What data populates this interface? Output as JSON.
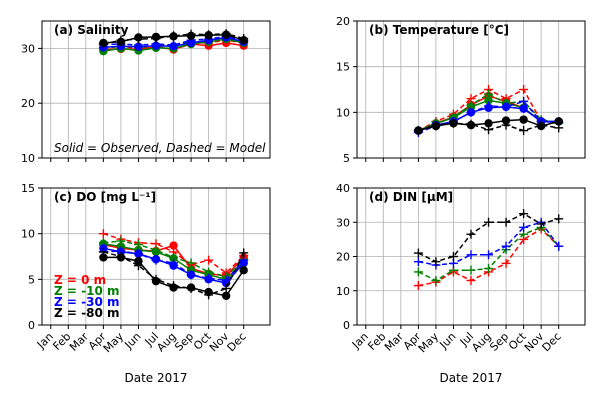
{
  "chart_data": [
    {
      "type": "line",
      "title": "(a) Salinity",
      "annotation": "Solid = Observed, Dashed = Model",
      "xlabel": "",
      "ylabel": "",
      "ylim": [
        10,
        35
      ],
      "yticks": [
        10,
        20,
        30
      ],
      "x_tick_labels": [],
      "grid": true,
      "series": [
        {
          "color": "#ff0000",
          "style": "solid",
          "marker": "circle",
          "x": [
            4,
            5,
            6,
            7,
            8,
            9,
            10,
            11,
            12
          ],
          "values": [
            29.8,
            29.9,
            29.8,
            30.3,
            29.8,
            30.8,
            30.5,
            31.0,
            30.5
          ]
        },
        {
          "color": "#ff0000",
          "style": "dashed",
          "marker": "plus",
          "x": [
            4,
            5,
            6,
            7,
            8,
            9,
            10,
            11,
            12
          ],
          "values": [
            30.2,
            30.3,
            30.0,
            30.5,
            30.5,
            31.0,
            31.0,
            31.5,
            31.0
          ]
        },
        {
          "color": "#008000",
          "style": "solid",
          "marker": "circle",
          "x": [
            4,
            5,
            6,
            7,
            8,
            9,
            10,
            11,
            12
          ],
          "values": [
            29.5,
            30.0,
            29.6,
            30.1,
            30.0,
            30.8,
            31.2,
            31.7,
            31.0
          ]
        },
        {
          "color": "#008000",
          "style": "dashed",
          "marker": "plus",
          "x": [
            4,
            5,
            6,
            7,
            8,
            9,
            10,
            11,
            12
          ],
          "values": [
            30.0,
            30.4,
            30.2,
            30.4,
            30.5,
            31.2,
            31.2,
            31.8,
            31.3
          ]
        },
        {
          "color": "#0000ff",
          "style": "solid",
          "marker": "circle",
          "x": [
            4,
            5,
            6,
            7,
            8,
            9,
            10,
            11,
            12
          ],
          "values": [
            30.2,
            30.4,
            30.3,
            30.5,
            30.4,
            31.0,
            31.5,
            32.0,
            31.2
          ]
        },
        {
          "color": "#0000ff",
          "style": "dashed",
          "marker": "plus",
          "x": [
            4,
            5,
            6,
            7,
            8,
            9,
            10,
            11,
            12
          ],
          "values": [
            30.7,
            30.8,
            30.6,
            30.8,
            30.6,
            31.5,
            31.7,
            32.2,
            31.4
          ]
        },
        {
          "color": "#000000",
          "style": "solid",
          "marker": "circle",
          "x": [
            4,
            5,
            6,
            7,
            8,
            9,
            10,
            11,
            12
          ],
          "values": [
            31.0,
            31.2,
            32.0,
            32.1,
            32.2,
            32.3,
            32.4,
            32.5,
            31.5
          ]
        },
        {
          "color": "#000000",
          "style": "dashed",
          "marker": "plus",
          "x": [
            4,
            5,
            6,
            7,
            8,
            9,
            10,
            11,
            12
          ],
          "values": [
            30.8,
            31.5,
            31.7,
            31.8,
            32.3,
            32.6,
            32.5,
            32.7,
            31.8
          ]
        }
      ]
    },
    {
      "type": "line",
      "title": "(b) Temperature [°C]",
      "xlabel": "",
      "ylabel": "",
      "ylim": [
        5,
        20
      ],
      "yticks": [
        5,
        10,
        15,
        20
      ],
      "x_tick_labels": [],
      "grid": true,
      "series": [
        {
          "color": "#ff0000",
          "style": "solid",
          "marker": "circle",
          "x": [
            4,
            5,
            6,
            7,
            8,
            9,
            10,
            11,
            12
          ],
          "values": [
            8.0,
            8.8,
            9.5,
            10.8,
            11.8,
            11.2,
            10.5,
            9.0,
            9.0
          ]
        },
        {
          "color": "#ff0000",
          "style": "dashed",
          "marker": "plus",
          "x": [
            4,
            5,
            6,
            7,
            8,
            9,
            10,
            11,
            12
          ],
          "values": [
            8.0,
            9.0,
            9.8,
            11.5,
            12.5,
            11.5,
            12.5,
            9.0,
            9.0
          ]
        },
        {
          "color": "#008000",
          "style": "solid",
          "marker": "circle",
          "x": [
            4,
            5,
            6,
            7,
            8,
            9,
            10,
            11,
            12
          ],
          "values": [
            8.0,
            8.8,
            9.4,
            10.6,
            11.3,
            11.0,
            10.5,
            9.0,
            9.0
          ]
        },
        {
          "color": "#008000",
          "style": "dashed",
          "marker": "plus",
          "x": [
            4,
            5,
            6,
            7,
            8,
            9,
            10,
            11,
            12
          ],
          "values": [
            8.0,
            8.7,
            9.5,
            10.8,
            12.0,
            11.0,
            11.2,
            9.2,
            8.8
          ]
        },
        {
          "color": "#0000ff",
          "style": "solid",
          "marker": "circle",
          "x": [
            4,
            5,
            6,
            7,
            8,
            9,
            10,
            11,
            12
          ],
          "values": [
            8.0,
            8.6,
            9.0,
            10.0,
            10.5,
            10.6,
            10.4,
            9.0,
            9.0
          ]
        },
        {
          "color": "#0000ff",
          "style": "dashed",
          "marker": "plus",
          "x": [
            4,
            5,
            6,
            7,
            8,
            9,
            10,
            11,
            12
          ],
          "values": [
            7.8,
            8.5,
            9.0,
            10.0,
            10.7,
            10.6,
            11.2,
            9.0,
            8.9
          ]
        },
        {
          "color": "#000000",
          "style": "solid",
          "marker": "circle",
          "x": [
            4,
            5,
            6,
            7,
            8,
            9,
            10,
            11,
            12
          ],
          "values": [
            8.0,
            8.5,
            8.8,
            8.6,
            8.8,
            9.1,
            9.2,
            8.5,
            9.0
          ]
        },
        {
          "color": "#000000",
          "style": "dashed",
          "marker": "plus",
          "x": [
            4,
            5,
            6,
            7,
            8,
            9,
            10,
            11,
            12
          ],
          "values": [
            8.0,
            8.6,
            8.8,
            8.7,
            8.1,
            8.6,
            8.0,
            8.6,
            8.3
          ]
        }
      ]
    },
    {
      "type": "line",
      "title": "(c) DO [mg L⁻¹]",
      "xlabel": "Date 2017",
      "ylabel": "",
      "ylim": [
        0,
        15
      ],
      "yticks": [
        0,
        5,
        10,
        15
      ],
      "x_tick_labels": [
        "Jan",
        "Feb",
        "Mar",
        "Apr",
        "May",
        "Jun",
        "Jul",
        "Aug",
        "Sep",
        "Oct",
        "Nov",
        "Dec"
      ],
      "grid": true,
      "depth_labels": [
        {
          "text": "Z =    0 m",
          "color": "#ff0000"
        },
        {
          "text": "Z =   -10 m",
          "color": "#008000"
        },
        {
          "text": "Z =   -30 m",
          "color": "#0000ff"
        },
        {
          "text": "Z =   -80 m",
          "color": "#000000"
        }
      ],
      "series": [
        {
          "color": "#ff0000",
          "style": "solid",
          "marker": "circle",
          "x": [
            4,
            5,
            6,
            7,
            8,
            9,
            10,
            11,
            12
          ],
          "values": [
            8.8,
            8.4,
            8.2,
            8.1,
            8.7,
            6.2,
            5.6,
            5.4,
            7.4
          ]
        },
        {
          "color": "#ff0000",
          "style": "dashed",
          "marker": "plus",
          "x": [
            4,
            5,
            6,
            7,
            8,
            9,
            10,
            11,
            12
          ],
          "values": [
            10.0,
            9.4,
            9.0,
            8.9,
            8.0,
            6.6,
            7.1,
            5.7,
            7.6
          ]
        },
        {
          "color": "#008000",
          "style": "solid",
          "marker": "circle",
          "x": [
            4,
            5,
            6,
            7,
            8,
            9,
            10,
            11,
            12
          ],
          "values": [
            8.9,
            8.6,
            8.2,
            8.0,
            7.3,
            6.0,
            5.5,
            5.0,
            6.8
          ]
        },
        {
          "color": "#008000",
          "style": "dashed",
          "marker": "plus",
          "x": [
            4,
            5,
            6,
            7,
            8,
            9,
            10,
            11,
            12
          ],
          "values": [
            9.0,
            9.2,
            8.8,
            8.2,
            7.4,
            6.8,
            5.8,
            5.3,
            7.2
          ]
        },
        {
          "color": "#0000ff",
          "style": "solid",
          "marker": "circle",
          "x": [
            4,
            5,
            6,
            7,
            8,
            9,
            10,
            11,
            12
          ],
          "values": [
            8.4,
            8.0,
            7.8,
            7.2,
            6.5,
            5.5,
            5.0,
            4.6,
            6.8
          ]
        },
        {
          "color": "#0000ff",
          "style": "dashed",
          "marker": "plus",
          "x": [
            4,
            5,
            6,
            7,
            8,
            9,
            10,
            11,
            12
          ],
          "values": [
            8.0,
            8.1,
            7.8,
            7.1,
            6.8,
            5.5,
            5.1,
            4.9,
            7.1
          ]
        },
        {
          "color": "#000000",
          "style": "solid",
          "marker": "circle",
          "x": [
            4,
            5,
            6,
            7,
            8,
            9,
            10,
            11,
            12
          ],
          "values": [
            7.4,
            7.4,
            7.0,
            4.8,
            4.1,
            4.1,
            3.6,
            3.2,
            6.0
          ]
        },
        {
          "color": "#000000",
          "style": "dashed",
          "marker": "plus",
          "x": [
            4,
            5,
            6,
            7,
            8,
            9,
            10,
            11,
            12
          ],
          "values": [
            8.0,
            7.5,
            6.5,
            5.0,
            4.3,
            4.0,
            3.3,
            4.0,
            7.9
          ]
        }
      ]
    },
    {
      "type": "line",
      "title": "(d) DIN [μM]",
      "xlabel": "Date 2017",
      "ylabel": "",
      "ylim": [
        0,
        40
      ],
      "yticks": [
        0,
        10,
        20,
        30,
        40
      ],
      "x_tick_labels": [
        "Jan",
        "Feb",
        "Mar",
        "Apr",
        "May",
        "Jun",
        "Jul",
        "Aug",
        "Sep",
        "Oct",
        "Nov",
        "Dec"
      ],
      "grid": true,
      "series": [
        {
          "color": "#ff0000",
          "style": "dashed",
          "marker": "plus",
          "x": [
            4,
            5,
            6,
            7,
            8,
            9,
            10,
            11,
            12
          ],
          "values": [
            11.5,
            12.5,
            15.5,
            13.0,
            15.5,
            18.0,
            25.0,
            28.0,
            23.0
          ]
        },
        {
          "color": "#008000",
          "style": "dashed",
          "marker": "plus",
          "x": [
            4,
            5,
            6,
            7,
            8,
            9,
            10,
            11,
            12
          ],
          "values": [
            15.5,
            13.0,
            16.0,
            16.0,
            16.5,
            22.0,
            26.5,
            28.5,
            23.0
          ]
        },
        {
          "color": "#0000ff",
          "style": "dashed",
          "marker": "plus",
          "x": [
            4,
            5,
            6,
            7,
            8,
            9,
            10,
            11,
            12
          ],
          "values": [
            18.5,
            17.5,
            18.0,
            20.5,
            20.5,
            23.0,
            28.5,
            30.0,
            23.0
          ]
        },
        {
          "color": "#000000",
          "style": "dashed",
          "marker": "plus",
          "x": [
            4,
            5,
            6,
            7,
            8,
            9,
            10,
            11,
            12
          ],
          "values": [
            21.0,
            18.5,
            20.0,
            26.5,
            30.0,
            30.0,
            32.5,
            29.5,
            31.0
          ]
        }
      ]
    }
  ]
}
